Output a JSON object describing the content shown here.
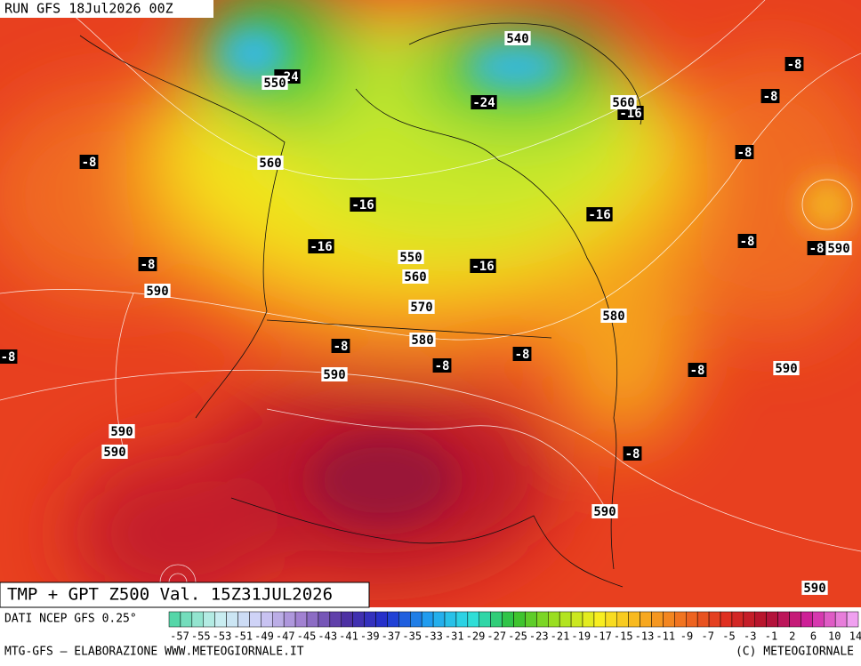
{
  "header": {
    "run": "RUN GFS 18Jul2026 00Z"
  },
  "title": "TMP + GPT Z500 Val. 15Z31JUL2026",
  "source": "DATI NCEP GFS 0.25°",
  "colorbar": {
    "labels": [
      "-57",
      "-55",
      "-53",
      "-51",
      "-49",
      "-47",
      "-45",
      "-43",
      "-41",
      "-39",
      "-37",
      "-35",
      "-33",
      "-31",
      "-29",
      "-27",
      "-25",
      "-23",
      "-21",
      "-19",
      "-17",
      "-15",
      "-13",
      "-11",
      "-9",
      "-7",
      "-5",
      "-3",
      "-1",
      "2",
      "6",
      "10",
      "14"
    ]
  },
  "footer": {
    "left": "MTG-GFS — ELABORAZIONE WWW.METEOGIORNALE.IT",
    "right": "(C) METEOGIORNALE"
  },
  "temperature_labels": [
    "-24",
    "-24",
    "-8",
    "-8",
    "-16",
    "-8",
    "-8",
    "-16",
    "-16",
    "-16",
    "-8",
    "-8",
    "-8",
    "-16",
    "-8",
    "-8",
    "-8",
    "-8",
    "-8",
    "-8"
  ],
  "height_labels": [
    "540",
    "550",
    "560",
    "560",
    "590",
    "550",
    "560",
    "590",
    "570",
    "580",
    "580",
    "590",
    "590",
    "590",
    "590",
    "590",
    "590"
  ]
}
